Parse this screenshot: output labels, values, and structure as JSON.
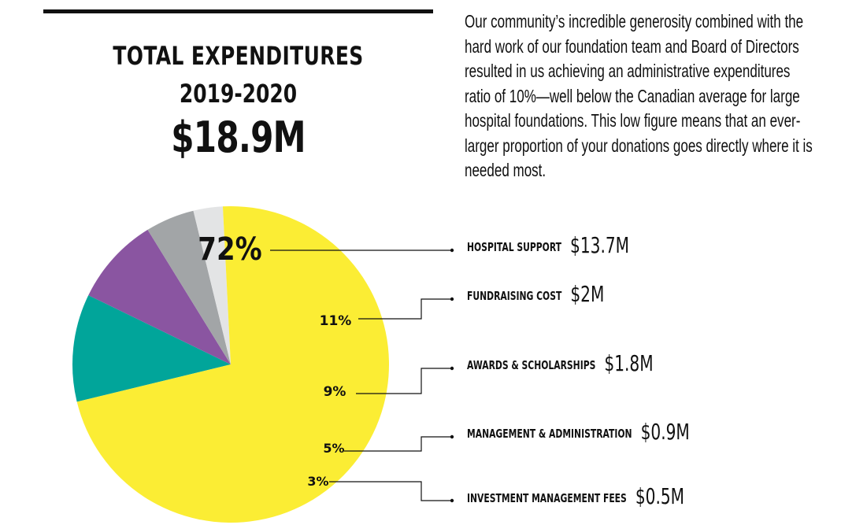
{
  "header": {
    "title_line1": "TOTAL EXPENDITURES",
    "title_line2": "2019-2020",
    "total": "$18.9M"
  },
  "intro_text": "Our community’s incredible generosity combined with the hard work of our foundation team and Board of Directors resulted in us achieving an administrative expenditures ratio of 10%—well below the Canadian average for large hospital foundations. This low figure means that an ever-larger proportion of your donations goes directly where it is needed most.",
  "chart_data": {
    "type": "pie",
    "title": "TOTAL EXPENDITURES 2019-2020",
    "total": "$18.9M",
    "slices": [
      {
        "label": "HOSPITAL SUPPORT",
        "amount": "$13.7M",
        "value": 72,
        "pct_label": "72%",
        "color": "#fbed34"
      },
      {
        "label": "FUNDRAISING COST",
        "amount": "$2M",
        "value": 11,
        "pct_label": "11%",
        "color": "#01a59a"
      },
      {
        "label": "AWARDS & SCHOLARSHIPS",
        "amount": "$1.8M",
        "value": 9,
        "pct_label": "9%",
        "color": "#8a55a1"
      },
      {
        "label": "MANAGEMENT & ADMINISTRATION",
        "amount": "$0.9M",
        "value": 5,
        "pct_label": "5%",
        "color": "#a2a5a7"
      },
      {
        "label": "INVESTMENT MANAGEMENT FEES",
        "amount": "$0.5M",
        "value": 3,
        "pct_label": "3%",
        "color": "#e3e4e5"
      }
    ]
  }
}
